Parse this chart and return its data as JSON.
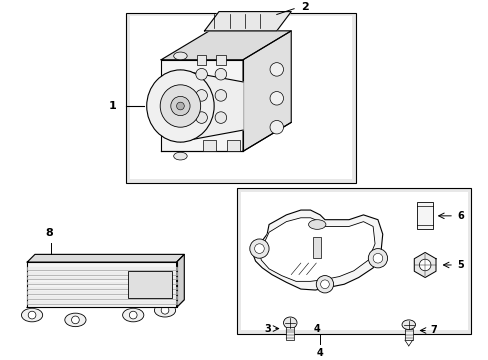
{
  "background_color": "#ffffff",
  "figure_width": 4.89,
  "figure_height": 3.6,
  "dpi": 100,
  "box_fill": "#e8e8e8",
  "line_color": "#000000",
  "white": "#ffffff",
  "light_gray": "#f0f0f0",
  "mid_gray": "#d0d0d0",
  "dark_gray": "#a0a0a0"
}
